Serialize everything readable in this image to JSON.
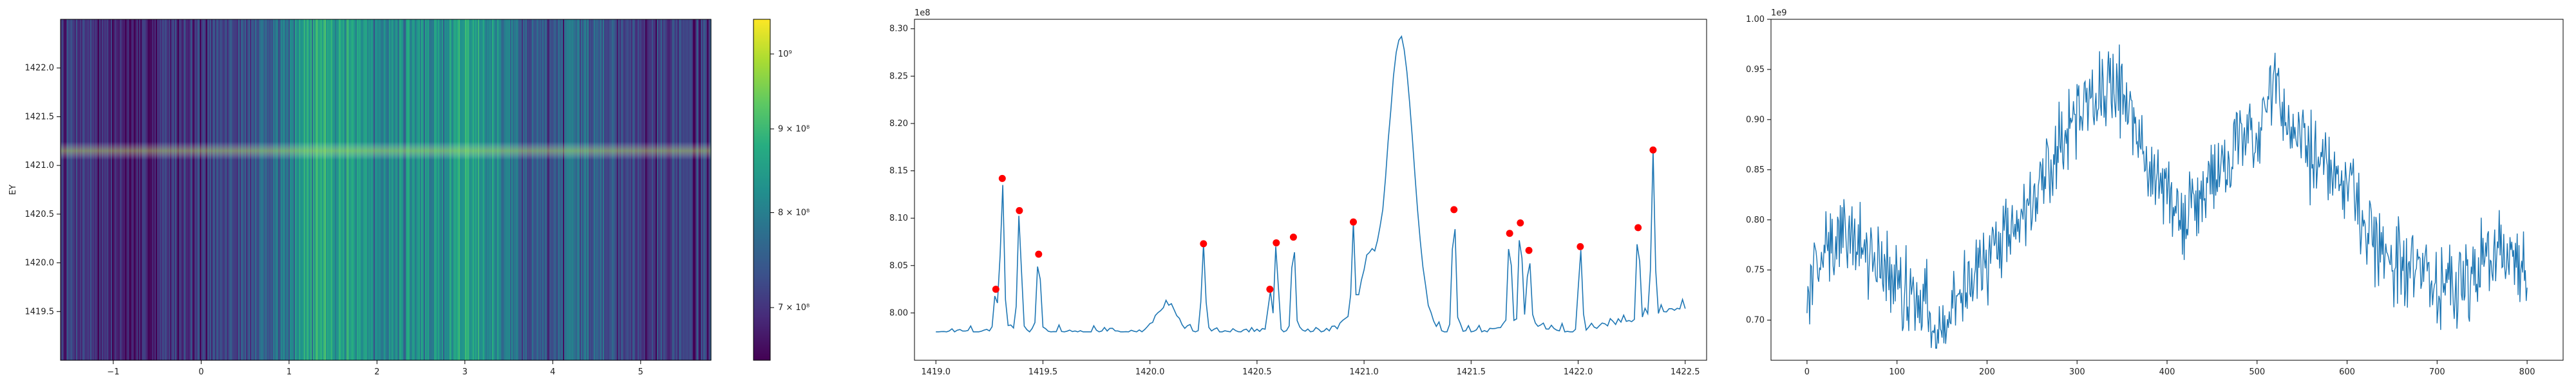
{
  "chart_data": [
    {
      "type": "heatmap",
      "ylabel": "EY",
      "xlim": [
        -1.6,
        5.8
      ],
      "ylim": [
        1419.0,
        1422.5
      ],
      "xticks": [
        "−1",
        "0",
        "1",
        "2",
        "3",
        "4",
        "5"
      ],
      "yticks": [
        "1419.5",
        "1420.0",
        "1420.5",
        "1421.0",
        "1421.5",
        "1422.0"
      ],
      "colorbar": {
        "scale": "log",
        "colormap": "viridis",
        "range": [
          650000000,
          1050000000
        ],
        "ticks": [
          {
            "value": 700000000,
            "label": "7 × 10⁸"
          },
          {
            "value": 800000000,
            "label": "8 × 10⁸"
          },
          {
            "value": 900000000,
            "label": "9 × 10⁸"
          },
          {
            "value": 1000000000,
            "label": "10⁹"
          }
        ]
      },
      "ridge_y": 1421.15
    },
    {
      "type": "line",
      "offset_label": "1e8",
      "xlim": [
        1418.9,
        1422.6
      ],
      "ylim": [
        7.95,
        8.31
      ],
      "xticks": [
        "1419.0",
        "1419.5",
        "1420.0",
        "1420.5",
        "1421.0",
        "1421.5",
        "1422.0",
        "1422.5"
      ],
      "yticks": [
        "8.00",
        "8.05",
        "8.10",
        "8.15",
        "8.20",
        "8.25",
        "8.30"
      ],
      "line_color": "#1f77b4",
      "peak_color": "#ff0000",
      "peaks": [
        {
          "x": 1419.28,
          "y": 8.025
        },
        {
          "x": 1419.31,
          "y": 8.142
        },
        {
          "x": 1419.39,
          "y": 8.108
        },
        {
          "x": 1419.48,
          "y": 8.062
        },
        {
          "x": 1420.25,
          "y": 8.073
        },
        {
          "x": 1420.56,
          "y": 8.025
        },
        {
          "x": 1420.59,
          "y": 8.074
        },
        {
          "x": 1420.67,
          "y": 8.08
        },
        {
          "x": 1420.95,
          "y": 8.096
        },
        {
          "x": 1421.42,
          "y": 8.109
        },
        {
          "x": 1421.68,
          "y": 8.084
        },
        {
          "x": 1421.73,
          "y": 8.095
        },
        {
          "x": 1421.77,
          "y": 8.066
        },
        {
          "x": 1422.01,
          "y": 8.07
        },
        {
          "x": 1422.28,
          "y": 8.09
        },
        {
          "x": 1422.35,
          "y": 8.172
        }
      ],
      "broad_peak": {
        "x": 1421.15,
        "y": 8.29
      }
    },
    {
      "type": "line",
      "offset_label": "1e9",
      "xlim": [
        -40,
        840
      ],
      "ylim": [
        0.66,
        1.0
      ],
      "xticks": [
        "0",
        "100",
        "200",
        "300",
        "400",
        "500",
        "600",
        "700",
        "800"
      ],
      "yticks": [
        "0.70",
        "0.75",
        "0.80",
        "0.85",
        "0.90",
        "0.95",
        "1.00"
      ],
      "line_color": "#1f77b4",
      "trend": [
        {
          "x": 0,
          "y": 0.73
        },
        {
          "x": 40,
          "y": 0.79
        },
        {
          "x": 100,
          "y": 0.74
        },
        {
          "x": 150,
          "y": 0.7
        },
        {
          "x": 200,
          "y": 0.76
        },
        {
          "x": 250,
          "y": 0.82
        },
        {
          "x": 280,
          "y": 0.88
        },
        {
          "x": 320,
          "y": 0.92
        },
        {
          "x": 340,
          "y": 0.94
        },
        {
          "x": 380,
          "y": 0.86
        },
        {
          "x": 420,
          "y": 0.8
        },
        {
          "x": 460,
          "y": 0.86
        },
        {
          "x": 500,
          "y": 0.88
        },
        {
          "x": 520,
          "y": 0.93
        },
        {
          "x": 560,
          "y": 0.86
        },
        {
          "x": 600,
          "y": 0.84
        },
        {
          "x": 640,
          "y": 0.76
        },
        {
          "x": 680,
          "y": 0.75
        },
        {
          "x": 720,
          "y": 0.73
        },
        {
          "x": 760,
          "y": 0.77
        },
        {
          "x": 800,
          "y": 0.75
        }
      ]
    }
  ]
}
